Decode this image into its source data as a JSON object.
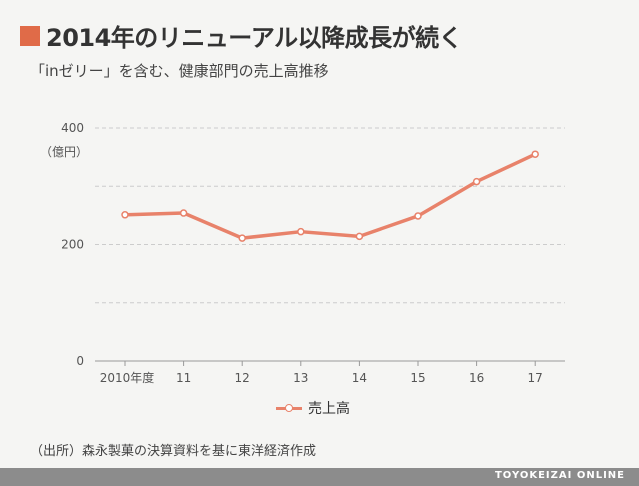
{
  "title": "2014年のリニューアル以降成長が続く",
  "subtitle": "「inゼリー」を含む、健康部門の売上高推移",
  "unit_label": "（億円）",
  "source": "（出所）森永製菓の決算資料を基に東洋経済作成",
  "footer": "TOYOKEIZAI ONLINE",
  "colors": {
    "accent": "#e06b48",
    "series": "#e8826a",
    "grid": "#cccccc",
    "footer": "#8c8c8c"
  },
  "chart_data": {
    "type": "line",
    "categories": [
      "2010年度",
      "11",
      "12",
      "13",
      "14",
      "15",
      "16",
      "17"
    ],
    "series": [
      {
        "name": "売上高",
        "values": [
          251,
          254,
          211,
          222,
          214,
          249,
          308,
          355
        ]
      }
    ],
    "xlabel": "",
    "ylabel": "（億円）",
    "ylim": [
      0,
      400
    ],
    "yticks": [
      0,
      200,
      400
    ],
    "grid": true,
    "legend": "bottom"
  }
}
